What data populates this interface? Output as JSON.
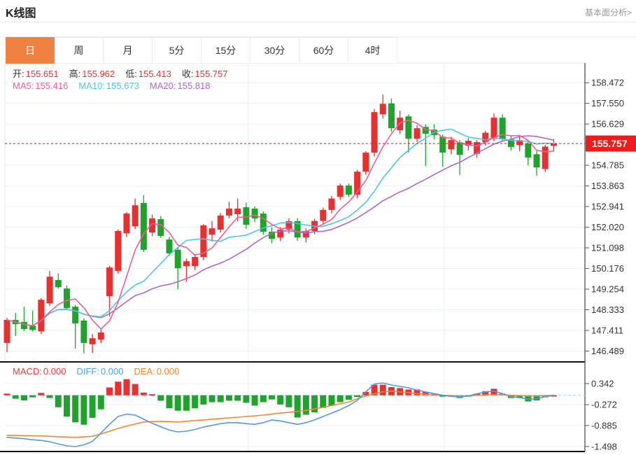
{
  "header": {
    "title": "K线图",
    "link": "基本面分析>"
  },
  "tabs": {
    "items": [
      "日",
      "周",
      "月",
      "5分",
      "15分",
      "30分",
      "60分",
      "4时"
    ],
    "active": 0
  },
  "info": {
    "ohlc": [
      {
        "key": "open",
        "label": "开:",
        "value": "155.651"
      },
      {
        "key": "high",
        "label": "高:",
        "value": "155.962"
      },
      {
        "key": "low",
        "label": "低:",
        "value": "155.413"
      },
      {
        "key": "close",
        "label": "收:",
        "value": "155.757"
      }
    ],
    "ma": [
      {
        "key": "ma5",
        "label": "MA5:",
        "value": "155.416",
        "color": "#ee5f8e"
      },
      {
        "key": "ma10",
        "label": "MA10:",
        "value": "155.673",
        "color": "#4cc4e6"
      },
      {
        "key": "ma20",
        "label": "MA20:",
        "value": "155.818",
        "color": "#b264c8"
      }
    ],
    "macd": [
      {
        "key": "macd",
        "label": "MACD:",
        "value": "0.000",
        "color": "#e83b3b"
      },
      {
        "key": "diff",
        "label": "DIFF:",
        "value": "0.000",
        "color": "#4d9de8"
      },
      {
        "key": "dea",
        "label": "DEA:",
        "value": "0.000",
        "color": "#f08428"
      }
    ]
  },
  "colors": {
    "accent_orange": "#ef8240",
    "up_red": "#e93030",
    "down_green": "#1fa32b",
    "ma5_pink": "#ee5f8e",
    "ma10_cyan": "#4cc4e6",
    "ma20_purple": "#b264c8",
    "diff_blue": "#5599dd",
    "dea_orange": "#f08837",
    "current_red": "#ee1c1c",
    "dotted_red": "#f02020",
    "grid": "#e9f0f7",
    "vgrid": "#e2ecf4",
    "zero_dash_cyan": "#a8dcee",
    "axis_text": "#333333",
    "axis_line": "#444444",
    "pane_border": "#111111",
    "ohlc_label": "#333333"
  },
  "chart_data": {
    "type": "candlestick+macd",
    "note": "Chinese color convention: red = up candle, green = down candle",
    "price_axis": {
      "labels": [
        "158.472",
        "157.550",
        "156.629",
        "155.757",
        "154.785",
        "153.863",
        "152.941",
        "152.020",
        "151.098",
        "150.176",
        "149.254",
        "148.333",
        "147.411",
        "146.489"
      ],
      "current": "155.757",
      "step": 0.9217
    },
    "macd_axis": {
      "labels": [
        "0.342",
        "-0.272",
        "-0.885",
        "-1.498"
      ]
    },
    "candles_ohlc": [
      [
        146.85,
        147.97,
        146.44,
        147.88
      ],
      [
        147.88,
        148.19,
        147.16,
        147.69
      ],
      [
        147.79,
        148.47,
        147.38,
        147.47
      ],
      [
        147.62,
        148.3,
        147.36,
        147.43
      ],
      [
        147.37,
        148.85,
        147.25,
        148.78
      ],
      [
        148.62,
        150.07,
        148.5,
        149.81
      ],
      [
        149.66,
        149.95,
        149.28,
        149.34
      ],
      [
        149.28,
        149.42,
        148.33,
        148.4
      ],
      [
        148.47,
        148.55,
        146.6,
        147.72
      ],
      [
        147.85,
        147.95,
        146.38,
        146.85
      ],
      [
        146.79,
        147.25,
        146.4,
        147.06
      ],
      [
        147.0,
        147.5,
        146.84,
        147.32
      ],
      [
        148.94,
        150.3,
        148.04,
        150.22
      ],
      [
        150.07,
        151.92,
        149.95,
        151.85
      ],
      [
        151.75,
        152.7,
        151.58,
        152.63
      ],
      [
        152.06,
        153.3,
        151.94,
        153.0
      ],
      [
        153.1,
        153.45,
        150.92,
        151.01
      ],
      [
        151.78,
        152.58,
        151.62,
        152.41
      ],
      [
        152.38,
        152.52,
        151.55,
        151.63
      ],
      [
        151.47,
        151.58,
        150.74,
        150.85
      ],
      [
        151.01,
        151.12,
        149.25,
        150.19
      ],
      [
        150.28,
        150.62,
        149.58,
        150.5
      ],
      [
        150.28,
        150.82,
        150.1,
        150.69
      ],
      [
        150.69,
        152.16,
        150.55,
        152.1
      ],
      [
        151.69,
        152.3,
        151.38,
        151.97
      ],
      [
        151.91,
        152.66,
        151.78,
        152.54
      ],
      [
        152.54,
        153.16,
        152.42,
        152.85
      ],
      [
        152.6,
        153.3,
        152.28,
        152.85
      ],
      [
        152.91,
        153.12,
        151.94,
        152.13
      ],
      [
        152.85,
        152.95,
        152.25,
        152.41
      ],
      [
        152.63,
        152.72,
        151.68,
        151.82
      ],
      [
        151.82,
        152.02,
        151.3,
        151.5
      ],
      [
        151.56,
        152.02,
        151.4,
        151.91
      ],
      [
        151.91,
        152.42,
        151.74,
        152.29
      ],
      [
        152.29,
        152.42,
        151.42,
        151.56
      ],
      [
        151.56,
        151.97,
        151.33,
        151.85
      ],
      [
        151.85,
        152.4,
        151.7,
        152.3
      ],
      [
        152.3,
        152.9,
        152.16,
        152.79
      ],
      [
        152.79,
        153.42,
        152.64,
        153.3
      ],
      [
        153.38,
        153.97,
        153.24,
        153.88
      ],
      [
        153.88,
        153.97,
        153.38,
        153.47
      ],
      [
        153.47,
        154.58,
        153.33,
        154.5
      ],
      [
        154.5,
        155.42,
        154.36,
        155.35
      ],
      [
        155.35,
        157.3,
        155.18,
        157.16
      ],
      [
        157.06,
        157.94,
        156.88,
        157.53
      ],
      [
        157.55,
        157.77,
        156.28,
        156.44
      ],
      [
        156.35,
        157.22,
        156.18,
        156.91
      ],
      [
        156.97,
        157.06,
        155.35,
        155.97
      ],
      [
        155.97,
        156.58,
        155.82,
        156.44
      ],
      [
        156.5,
        156.62,
        154.75,
        156.19
      ],
      [
        156.38,
        156.62,
        155.94,
        156.13
      ],
      [
        156.06,
        156.16,
        154.72,
        155.35
      ],
      [
        155.5,
        156.06,
        155.28,
        155.91
      ],
      [
        155.81,
        155.92,
        154.35,
        155.25
      ],
      [
        155.66,
        156.0,
        155.45,
        155.88
      ],
      [
        155.3,
        155.92,
        155.12,
        155.82
      ],
      [
        155.82,
        156.32,
        155.66,
        156.24
      ],
      [
        155.97,
        157.1,
        155.86,
        156.91
      ],
      [
        156.91,
        157.06,
        155.86,
        155.94
      ],
      [
        155.94,
        156.12,
        155.44,
        155.6
      ],
      [
        155.69,
        156.06,
        155.42,
        155.91
      ],
      [
        155.75,
        155.86,
        154.78,
        155.13
      ],
      [
        155.28,
        155.42,
        154.32,
        154.69
      ],
      [
        154.62,
        155.7,
        154.48,
        155.62
      ],
      [
        155.651,
        155.962,
        155.413,
        155.757
      ]
    ],
    "macd_hist": [
      0.05,
      -0.1,
      -0.15,
      -0.06,
      0.07,
      -0.08,
      -0.35,
      -0.62,
      -0.79,
      -0.86,
      -0.66,
      -0.41,
      0.23,
      0.4,
      0.47,
      0.33,
      0.08,
      0.03,
      -0.16,
      -0.38,
      -0.45,
      -0.45,
      -0.38,
      -0.27,
      -0.2,
      -0.2,
      -0.16,
      -0.16,
      -0.22,
      -0.3,
      -0.2,
      -0.12,
      -0.27,
      -0.35,
      -0.65,
      -0.57,
      -0.5,
      -0.37,
      -0.3,
      -0.2,
      -0.13,
      -0.05,
      0.1,
      0.31,
      0.31,
      0.24,
      0.21,
      0.17,
      0.17,
      0.1,
      0.04,
      -0.04,
      -0.04,
      -0.08,
      -0.04,
      0.05,
      0.12,
      0.19,
      0.05,
      -0.08,
      -0.08,
      -0.18,
      -0.15,
      -0.06,
      0.0
    ],
    "diff_line": [
      -1.23,
      -1.25,
      -1.27,
      -1.3,
      -1.32,
      -1.36,
      -1.42,
      -1.48,
      -1.5,
      -1.45,
      -1.35,
      -1.1,
      -0.85,
      -0.62,
      -0.55,
      -0.58,
      -0.7,
      -0.82,
      -0.92,
      -1.02,
      -1.07,
      -1.05,
      -1.0,
      -0.93,
      -0.88,
      -0.83,
      -0.8,
      -0.8,
      -0.83,
      -0.85,
      -0.8,
      -0.72,
      -0.75,
      -0.8,
      -0.85,
      -0.8,
      -0.72,
      -0.62,
      -0.52,
      -0.42,
      -0.3,
      -0.15,
      0.1,
      0.33,
      0.36,
      0.3,
      0.26,
      0.22,
      0.15,
      0.1,
      0.05,
      0.0,
      -0.03,
      -0.05,
      -0.02,
      0.04,
      0.1,
      0.12,
      0.05,
      -0.04,
      -0.07,
      -0.11,
      -0.1,
      -0.04,
      0.0
    ],
    "dea_line": [
      -1.17,
      -1.175,
      -1.18,
      -1.185,
      -1.19,
      -1.2,
      -1.21,
      -1.22,
      -1.23,
      -1.215,
      -1.2,
      -1.13,
      -1.05,
      -0.97,
      -0.9,
      -0.84,
      -0.78,
      -0.77,
      -0.76,
      -0.77,
      -0.78,
      -0.76,
      -0.74,
      -0.72,
      -0.7,
      -0.68,
      -0.66,
      -0.64,
      -0.62,
      -0.6,
      -0.58,
      -0.55,
      -0.52,
      -0.5,
      -0.47,
      -0.44,
      -0.4,
      -0.35,
      -0.3,
      -0.25,
      -0.2,
      -0.1,
      -0.02,
      0.05,
      0.1,
      0.12,
      0.1,
      0.08,
      0.05,
      0.03,
      0.01,
      0.0,
      -0.01,
      -0.02,
      -0.02,
      0.0,
      0.01,
      0.02,
      0.02,
      0.0,
      -0.01,
      -0.02,
      -0.02,
      -0.01,
      0.0
    ]
  }
}
